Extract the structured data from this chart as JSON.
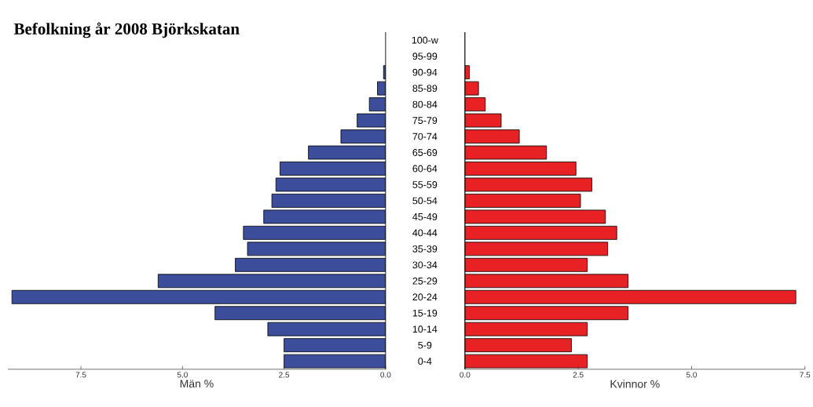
{
  "chart_data": [
    {
      "type": "bar",
      "orientation": "horizontal",
      "title": "Befolkning år 2008 Björkskatan",
      "xlabel": "Män %",
      "tick_labels": "x",
      "color": "#3b4d9b",
      "categories": [
        null,
        null,
        null,
        null,
        null,
        null,
        null,
        null,
        null,
        null,
        null,
        null,
        null,
        null,
        null,
        null,
        null,
        null,
        null,
        null,
        null
      ],
      "values": [
        0,
        0,
        0.05,
        0.2,
        0.4,
        0.7,
        1.1,
        1.9,
        2.6,
        2.7,
        2.8,
        3.0,
        3.5,
        3.4,
        3.7,
        5.6,
        9.2,
        4.2,
        2.9,
        2.5,
        2.5
      ],
      "xlim": [
        9.3,
        0
      ],
      "xticks": [
        {
          "value": 7.5,
          "label": "7.5"
        },
        {
          "value": 5,
          "label": "5.0"
        },
        {
          "value": 2.5,
          "label": "2.5"
        },
        {
          "value": 0,
          "label": "0.0"
        }
      ]
    },
    {
      "type": "bar",
      "orientation": "horizontal",
      "xlabel": "Kvinnor %",
      "color": "#e82224",
      "categories": [
        "100-w",
        "95-99",
        "90-94",
        "85-89",
        "80-84",
        "75-79",
        "70-74",
        "65-69",
        "60-64",
        "55-59",
        "50-54",
        "45-49",
        "40-44",
        "35-39",
        "30-34",
        "25-29",
        "20-24",
        "15-19",
        "10-14",
        "5-9",
        "0-4"
      ],
      "values": [
        0,
        0,
        0.1,
        0.3,
        0.45,
        0.8,
        1.2,
        1.8,
        2.45,
        2.8,
        2.55,
        3.1,
        3.35,
        3.15,
        2.7,
        3.6,
        7.3,
        3.6,
        2.7,
        2.35,
        2.7
      ],
      "xlim": [
        0,
        7.5
      ],
      "xticks": [
        {
          "value": 0,
          "label": "0.0"
        },
        {
          "value": 2.5,
          "label": "2.5"
        },
        {
          "value": 5,
          "label": "5.0"
        },
        {
          "value": 7.5,
          "label": "7.5"
        }
      ]
    }
  ]
}
